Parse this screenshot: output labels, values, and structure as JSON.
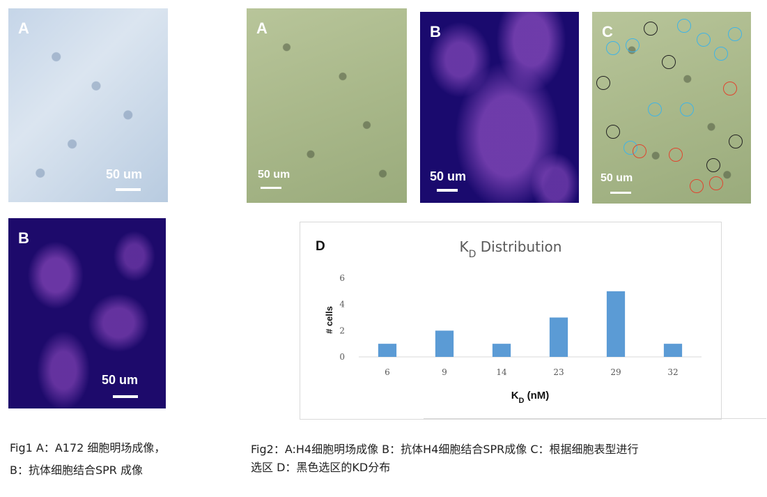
{
  "fig1": {
    "panel_a": {
      "label": "A",
      "scale_text": "50 um"
    },
    "panel_b": {
      "label": "B",
      "scale_text": "50 um"
    },
    "caption_line1": "Fig1 A：A172 细胞明场成像，",
    "caption_line2": "B：抗体细胞结合SPR 成像"
  },
  "fig2": {
    "panel_a": {
      "label": "A",
      "scale_text": "50 um"
    },
    "panel_b": {
      "label": "B",
      "scale_text": "50 um"
    },
    "panel_c": {
      "label": "C",
      "scale_text": "50 um"
    },
    "panel_d": {
      "label": "D"
    },
    "caption_line1": "Fig2：A:H4细胞明场成像 B：抗体H4细胞结合SPR成像 C：根据细胞表型进行",
    "caption_line2": "选区  D：黑色选区的KD分布"
  },
  "colors": {
    "bar": "#5b9bd5",
    "ring_blue": "#3fb4e6",
    "ring_black": "#222222",
    "ring_red": "#e0452f"
  },
  "chart_data": {
    "type": "bar",
    "title": "KD Distribution",
    "title_main": "K",
    "title_sub": "D",
    "title_rest": " Distribution",
    "xlabel_main": "K",
    "xlabel_sub": "D",
    "xlabel_rest": " (nM)",
    "ylabel": "# cells",
    "categories": [
      "6",
      "9",
      "14",
      "23",
      "29",
      "32"
    ],
    "values": [
      1,
      2,
      1,
      3,
      5,
      1
    ],
    "ylim": [
      0,
      6
    ],
    "yticks": [
      "0",
      "2",
      "4",
      "6"
    ],
    "grid": false
  }
}
